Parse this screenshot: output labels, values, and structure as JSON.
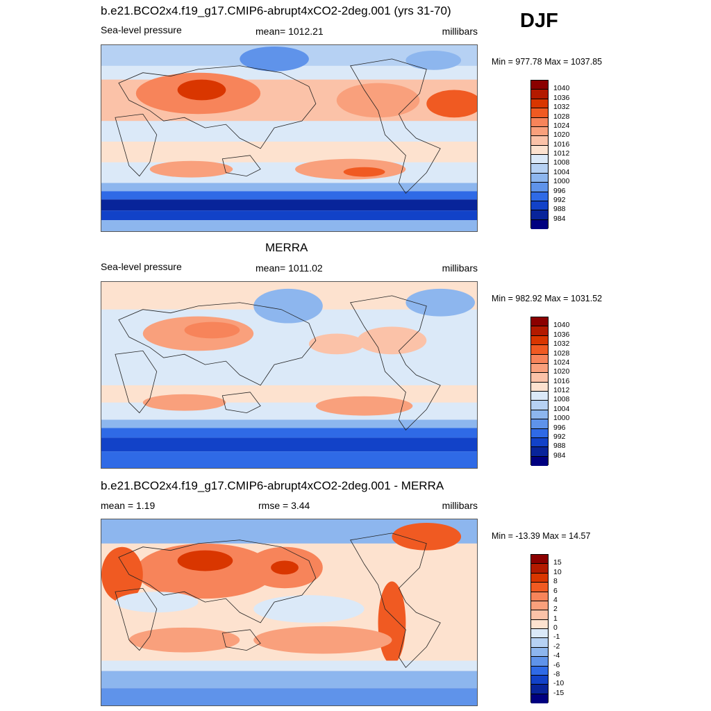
{
  "season": "DJF",
  "panels": [
    {
      "title": "b.e21.BCO2x4.f19_g17.CMIP6-abrupt4xCO2-2deg.001 (yrs 31-70)",
      "left_label": "Sea-level pressure",
      "center_label": "mean= 1012.21",
      "units": "millibars",
      "minmax": "Min = 977.78 Max = 1037.85"
    },
    {
      "title": "MERRA",
      "left_label": "Sea-level pressure",
      "center_label": "mean= 1011.02",
      "units": "millibars",
      "minmax": "Min = 982.92 Max = 1031.52"
    },
    {
      "title": "b.e21.BCO2x4.f19_g17.CMIP6-abrupt4xCO2-2deg.001 - MERRA",
      "left_label": "mean =   1.19",
      "center_label": "rmse =   3.44",
      "units": "millibars",
      "minmax": "Min = -13.39 Max =  14.57"
    }
  ],
  "colorbar_slp": {
    "labels": [
      "1040",
      "1036",
      "1032",
      "1028",
      "1024",
      "1020",
      "1016",
      "1012",
      "1008",
      "1004",
      "1000",
      "996",
      "992",
      "988",
      "984"
    ],
    "colors": [
      "#8b0000",
      "#b31a00",
      "#d93600",
      "#f05a22",
      "#f7845a",
      "#f9a07c",
      "#fbc2a8",
      "#fde2cf",
      "#dbe9f8",
      "#b6d1f3",
      "#8db6ee",
      "#5f93ea",
      "#2f6ae6",
      "#1242c8",
      "#08249a",
      "#000080"
    ]
  },
  "colorbar_diff": {
    "labels": [
      "15",
      "10",
      "8",
      "6",
      "4",
      "2",
      "1",
      "0",
      "-1",
      "-2",
      "-4",
      "-6",
      "-8",
      "-10",
      "-15"
    ],
    "colors": [
      "#8b0000",
      "#b31a00",
      "#d93600",
      "#f05a22",
      "#f7845a",
      "#f9a07c",
      "#fbc2a8",
      "#fde2cf",
      "#dbe9f8",
      "#b6d1f3",
      "#8db6ee",
      "#5f93ea",
      "#2f6ae6",
      "#1242c8",
      "#08249a",
      "#000080"
    ]
  }
}
